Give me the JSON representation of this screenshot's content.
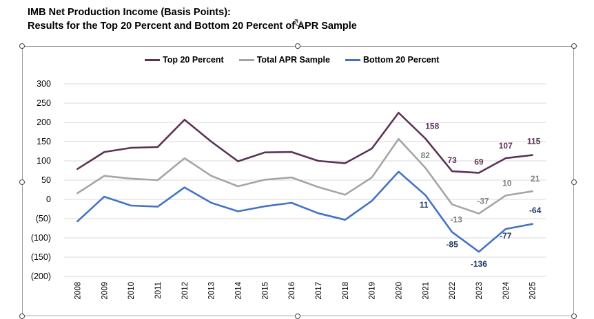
{
  "chart_data": {
    "type": "line",
    "title": "IMB Net Production Income (Basis Points):",
    "subtitle": "Results for the Top 20 Percent and Bottom 20 Percent of APR Sample",
    "x": [
      "2008",
      "2009",
      "2010",
      "2011",
      "2012",
      "2013",
      "2014",
      "2015",
      "2016",
      "2017",
      "2018",
      "2019",
      "2020",
      "2021",
      "2022",
      "2023",
      "2024",
      "2025"
    ],
    "ylim": [
      -200,
      300
    ],
    "yticks": [
      300,
      250,
      200,
      150,
      100,
      50,
      0,
      -50,
      -100,
      -150,
      -200
    ],
    "ytick_labels": [
      "300",
      "250",
      "200",
      "150",
      "100",
      "50",
      "0",
      "(50)",
      "(100)",
      "(150)",
      "(200)"
    ],
    "grid": true,
    "legend_position": "top",
    "series": [
      {
        "name": "Top 20 Percent",
        "color": "#5b3256",
        "values": [
          79,
          123,
          134,
          136,
          207,
          150,
          99,
          122,
          123,
          100,
          94,
          132,
          225,
          158,
          73,
          69,
          107,
          115
        ],
        "data_labels": {
          "2021": "158",
          "2022": "73",
          "2023": "69",
          "2024": "107",
          "2025": "115"
        }
      },
      {
        "name": "Total APR Sample",
        "color": "#a5a5a5",
        "values": [
          16,
          61,
          54,
          50,
          107,
          61,
          34,
          51,
          57,
          32,
          12,
          57,
          157,
          82,
          -13,
          -37,
          10,
          21
        ],
        "data_labels": {
          "2021": "82",
          "2022": "-13",
          "2023": "-37",
          "2024": "10",
          "2025": "21"
        }
      },
      {
        "name": "Bottom 20 Percent",
        "color": "#4472c4",
        "values": [
          -57,
          7,
          -16,
          -19,
          31,
          -9,
          -31,
          -18,
          -9,
          -36,
          -53,
          -4,
          72,
          11,
          -85,
          -136,
          -77,
          -64
        ],
        "data_labels": {
          "2021": "11",
          "2022": "-85",
          "2023": "-136",
          "2024": "-77",
          "2025": "-64"
        }
      }
    ]
  },
  "label_colors": {
    "Top 20 Percent": "#5b3256",
    "Total APR Sample": "#808080",
    "Bottom 20 Percent": "#1f3a68"
  }
}
